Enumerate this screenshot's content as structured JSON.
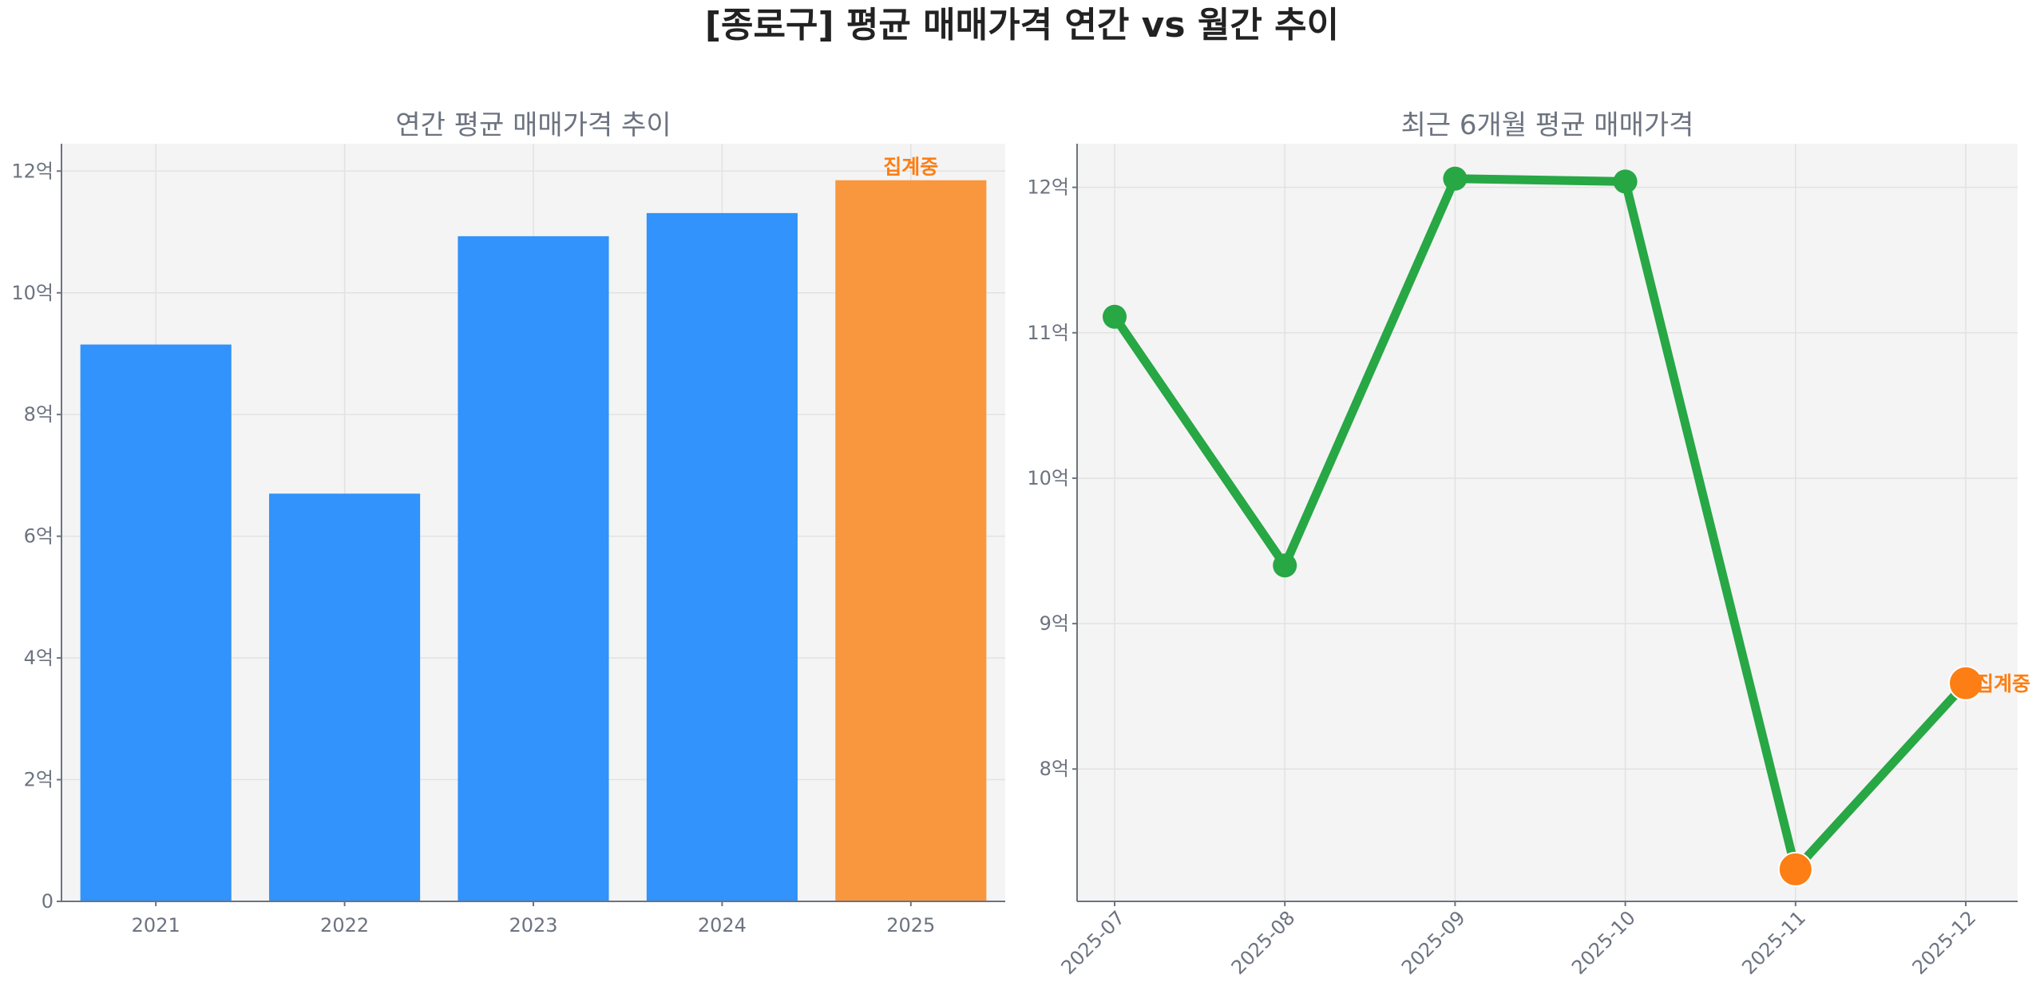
{
  "title": "[종로구] 평균 매매가격 연간 vs 월간 추이",
  "chart_data": [
    {
      "type": "bar",
      "title": "연간 평균 매매가격 추이",
      "categories": [
        "2021",
        "2022",
        "2023",
        "2024",
        "2025"
      ],
      "values": [
        9.15,
        6.7,
        10.93,
        11.31,
        11.85
      ],
      "unit": "억",
      "ylim": [
        0,
        12.45
      ],
      "yticks": [
        0,
        2,
        4,
        6,
        8,
        10,
        12
      ],
      "ytick_labels": [
        "0",
        "2억",
        "4억",
        "6억",
        "8억",
        "10억",
        "12억"
      ],
      "grid": true,
      "colors": {
        "bar": "#3193fb",
        "in_progress": "#f9973f"
      },
      "annotation": {
        "category": "2025",
        "text": "집계중"
      }
    },
    {
      "type": "line",
      "title": "최근 6개월 평균 매매가격",
      "categories": [
        "2025-07",
        "2025-08",
        "2025-09",
        "2025-10",
        "2025-11",
        "2025-12"
      ],
      "values": [
        11.11,
        9.4,
        12.06,
        12.04,
        7.31,
        8.59
      ],
      "unit": "억",
      "ylim": [
        7.09,
        12.3
      ],
      "yticks": [
        8,
        9,
        10,
        11,
        12
      ],
      "ytick_labels": [
        "8억",
        "9억",
        "10억",
        "11억",
        "12억"
      ],
      "grid": true,
      "colors": {
        "line": "#28a745",
        "highlight": "#fd7e14"
      },
      "highlighted_points": [
        "2025-11",
        "2025-12"
      ],
      "annotation": {
        "category": "2025-12",
        "text": "집계중"
      }
    }
  ]
}
